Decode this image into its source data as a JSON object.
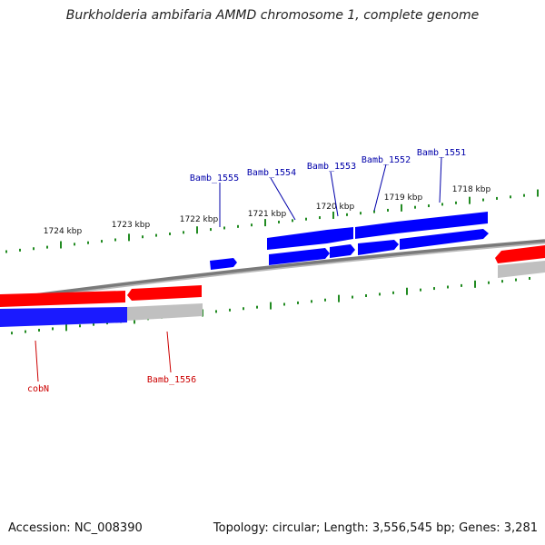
{
  "title": "Burkholderia ambifaria AMMD chromosome 1, complete genome",
  "footer": {
    "accession": "Accession: NC_008390",
    "summary": "Topology: circular; Length: 3,556,545 bp; Genes: 3,281"
  },
  "colors": {
    "forward_strand": "#ff0000",
    "reverse_strand": "#0000ff",
    "shadow": "#bdbdbd",
    "backbone": "#808080",
    "tick": "#228b22",
    "label_forward": "#cc0000",
    "label_reverse": "#0000aa"
  },
  "scale": {
    "labels": [
      "1724 kbp",
      "1723 kbp",
      "1722 kbp",
      "1721 kbp",
      "1720 kbp",
      "1719 kbp",
      "1718 kbp"
    ]
  },
  "genes": [
    {
      "name": "Bamb_1555",
      "strand": "reverse"
    },
    {
      "name": "Bamb_1554",
      "strand": "reverse"
    },
    {
      "name": "Bamb_1553",
      "strand": "reverse"
    },
    {
      "name": "Bamb_1552",
      "strand": "reverse"
    },
    {
      "name": "Bamb_1551",
      "strand": "reverse"
    },
    {
      "name": "cobN",
      "strand": "forward"
    },
    {
      "name": "Bamb_1556",
      "strand": "forward"
    }
  ]
}
